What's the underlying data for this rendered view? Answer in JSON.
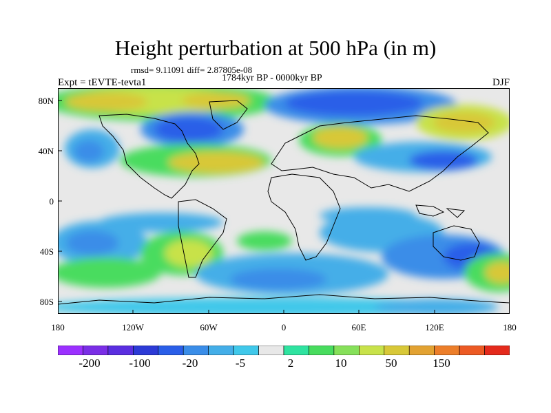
{
  "title": "Height perturbation at 500 hPa (in m)",
  "subtitle_stats": "rmsd= 9.11091  diff= 2.87805e-08",
  "subtitle_period": "1784kyr BP - 0000kyr BP",
  "experiment_label": "Expt = tEVTE-tevta1",
  "season_label": "DJF",
  "y_ticks": [
    "80N",
    "40N",
    "0",
    "40S",
    "80S"
  ],
  "x_ticks": [
    "180",
    "120W",
    "60W",
    "0",
    "60E",
    "120E",
    "180"
  ],
  "colorbar": {
    "colors": [
      "#9b30ff",
      "#7a2ee6",
      "#5a2ee0",
      "#2c3ad6",
      "#2a5ee8",
      "#3a8de8",
      "#44aee8",
      "#40c8ea",
      "#e8e8e8",
      "#2fe3a0",
      "#48dc5e",
      "#86e05a",
      "#c8e24a",
      "#d8c838",
      "#e2a232",
      "#ec7e2a",
      "#ec5a24",
      "#e42a1c"
    ],
    "labels": [
      "-200",
      "-100",
      "-20",
      "-5",
      "2",
      "10",
      "50",
      "150"
    ]
  },
  "colors": {
    "land_outline": "#000000",
    "neutral": "#e8e8e8"
  }
}
